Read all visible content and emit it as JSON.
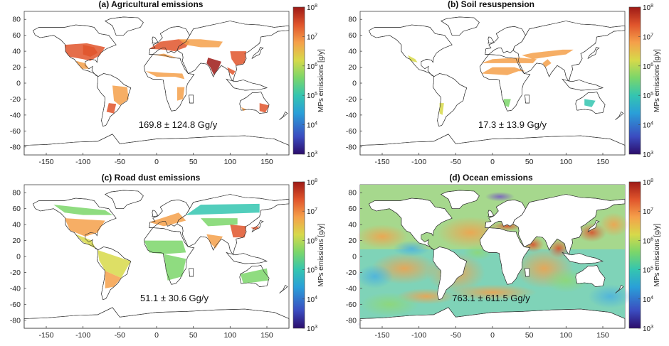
{
  "colors": {
    "scale": [
      "#2c0d6b",
      "#3b4cc0",
      "#2a9fd8",
      "#34c5b0",
      "#7bd66a",
      "#d7d94a",
      "#f5a04a",
      "#e0552c",
      "#9e1a16"
    ],
    "land": [
      "#ffffff",
      "#ffffff"
    ],
    "coast": "#333333"
  },
  "axes": {
    "x_ticks": [
      "-150",
      "-100",
      "-50",
      "0",
      "50",
      "100",
      "150"
    ],
    "x_values": [
      -150,
      -100,
      -50,
      0,
      50,
      100,
      150
    ],
    "y_ticks": [
      "80",
      "60",
      "40",
      "20",
      "0",
      "-20",
      "-40",
      "-60",
      "-80"
    ],
    "y_values": [
      80,
      60,
      40,
      20,
      0,
      -20,
      -40,
      -60,
      -80
    ],
    "xlim": [
      -180,
      180
    ],
    "ylim": [
      -90,
      90
    ]
  },
  "colorbar": {
    "label": "MPs emissions [g/y]",
    "ticks": [
      "10^8",
      "10^7",
      "10^6",
      "10^5",
      "10^4",
      "10^3"
    ],
    "range": [
      3,
      8
    ]
  },
  "panels": [
    {
      "title": "(a) Agricultural emissions",
      "annotation": "169.8 ± 124.8  Gg/y",
      "kind": "agri"
    },
    {
      "title": "(b) Soil resuspension",
      "annotation": "17.3 ± 13.9  Gg/y",
      "kind": "soil"
    },
    {
      "title": "(c) Road dust emissions",
      "annotation": "51.1 ± 30.6  Gg/y",
      "kind": "road"
    },
    {
      "title": "(d) Ocean emissions",
      "annotation": "763.1 ± 611.5  Gg/y",
      "kind": "ocean"
    }
  ],
  "chart_data": [
    {
      "type": "map",
      "title": "(a) Agricultural emissions",
      "total": "169.8 ± 124.8 Gg/y",
      "colorbar_label": "MPs emissions [g/y]",
      "colorbar_range_log10": [
        3,
        8
      ],
      "lon_range": [
        -180,
        180
      ],
      "lat_range": [
        -90,
        90
      ]
    },
    {
      "type": "map",
      "title": "(b) Soil resuspension",
      "total": "17.3 ± 13.9 Gg/y",
      "colorbar_label": "MPs emissions [g/y]",
      "colorbar_range_log10": [
        3,
        8
      ],
      "lon_range": [
        -180,
        180
      ],
      "lat_range": [
        -90,
        90
      ]
    },
    {
      "type": "map",
      "title": "(c) Road dust emissions",
      "total": "51.1 ± 30.6 Gg/y",
      "colorbar_label": "MPs emissions [g/y]",
      "colorbar_range_log10": [
        3,
        8
      ],
      "lon_range": [
        -180,
        180
      ],
      "lat_range": [
        -90,
        90
      ]
    },
    {
      "type": "map",
      "title": "(d) Ocean emissions",
      "total": "763.1 ± 611.5 Gg/y",
      "colorbar_label": "MPs emissions [g/y]",
      "colorbar_range_log10": [
        3,
        8
      ],
      "lon_range": [
        -180,
        180
      ],
      "lat_range": [
        -90,
        90
      ]
    }
  ]
}
